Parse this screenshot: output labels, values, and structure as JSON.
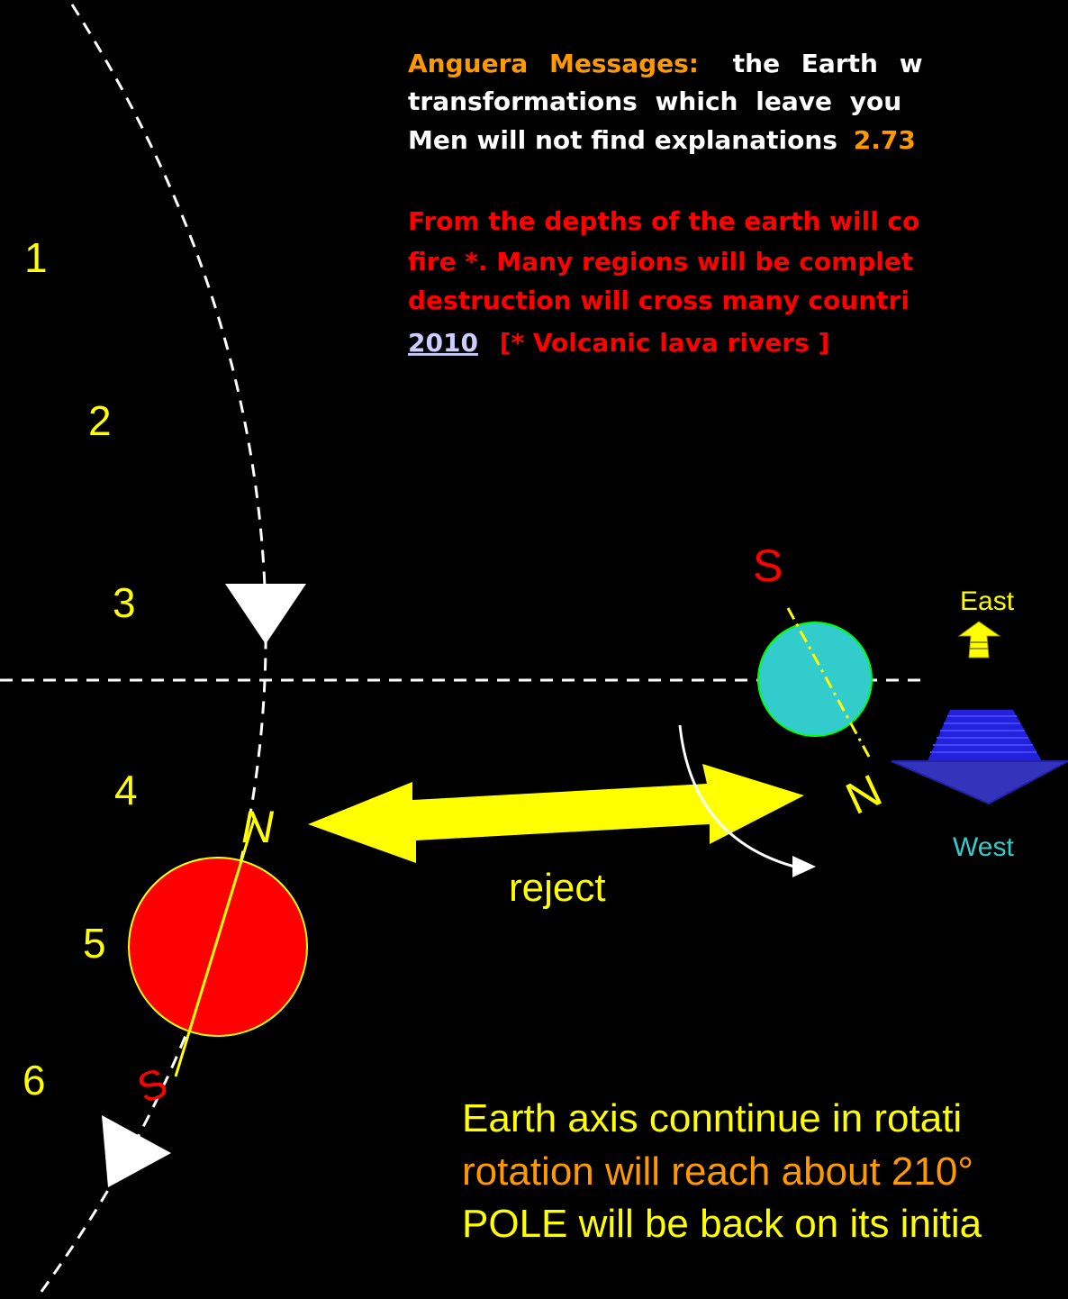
{
  "message_1": {
    "lines": [
      {
        "parts": [
          "Anguera Messages:",
          "the Earth w"
        ]
      },
      {
        "parts": [
          "transformations which leave you"
        ]
      },
      {
        "parts": [
          "Men will not find explanations",
          "2.73"
        ]
      }
    ]
  },
  "message_2": {
    "lines": [
      "From the depths of the earth will co",
      "fire *. Many regions will be complet",
      "destruction will cross many countri"
    ],
    "link": "2010",
    "note": "[* Volcanic lava rivers ]"
  },
  "positions": [
    "1",
    "2",
    "3",
    "4",
    "5",
    "6"
  ],
  "labels": {
    "south_right": "S",
    "east": "East",
    "north_right": "N",
    "west": "West",
    "north_left": "N",
    "south_left": "S",
    "reject": "reject"
  },
  "bottom_text": [
    "Earth axis conntinue in rotati",
    "rotation will reach about 210°",
    "POLE will be back on its initia"
  ]
}
